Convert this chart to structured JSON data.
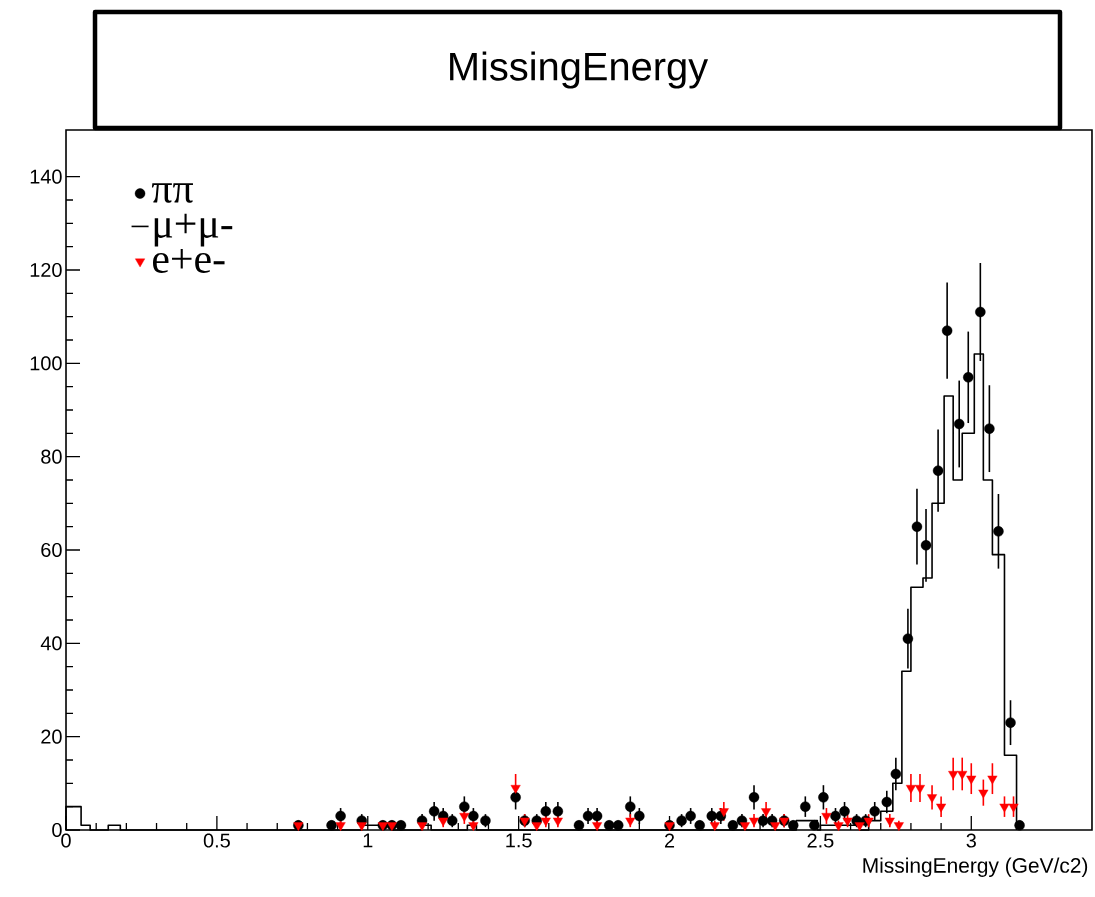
{
  "chart_data": {
    "type": "scatter",
    "title": "MissingEnergy",
    "xlabel": "MissingEnergy (GeV/c2)",
    "xlim": [
      0,
      3.4
    ],
    "ylim": [
      0,
      150
    ],
    "xticks": [
      0,
      0.5,
      1,
      1.5,
      2,
      2.5,
      3
    ],
    "yticks": [
      0,
      20,
      40,
      60,
      80,
      100,
      120,
      140
    ],
    "legend": "top left",
    "grid": false,
    "series": [
      {
        "name": "ππ",
        "marker": "circle",
        "color": "#000000",
        "x": [
          0.77,
          0.88,
          0.91,
          0.98,
          1.05,
          1.08,
          1.11,
          1.18,
          1.22,
          1.25,
          1.28,
          1.32,
          1.35,
          1.39,
          1.49,
          1.52,
          1.56,
          1.59,
          1.63,
          1.7,
          1.73,
          1.76,
          1.8,
          1.83,
          1.87,
          1.9,
          2.0,
          2.04,
          2.07,
          2.1,
          2.14,
          2.17,
          2.21,
          2.24,
          2.28,
          2.31,
          2.34,
          2.38,
          2.41,
          2.45,
          2.48,
          2.51,
          2.55,
          2.58,
          2.62,
          2.65,
          2.68,
          2.72,
          2.75,
          2.79,
          2.82,
          2.85,
          2.89,
          2.92,
          2.96,
          2.99,
          3.03,
          3.06,
          3.09,
          3.13,
          3.16
        ],
        "values": [
          1,
          1,
          3,
          2,
          1,
          1,
          1,
          2,
          4,
          3,
          2,
          5,
          3,
          2,
          7,
          2,
          2,
          4,
          4,
          1,
          3,
          3,
          1,
          1,
          5,
          3,
          1,
          2,
          3,
          1,
          3,
          3,
          1,
          2,
          7,
          2,
          2,
          2,
          1,
          5,
          1,
          7,
          3,
          4,
          2,
          2,
          4,
          6,
          12,
          41,
          65,
          61,
          77,
          107,
          87,
          97,
          111,
          86,
          64,
          23,
          1
        ],
        "errors": [
          1,
          1,
          1.7,
          1.4,
          1,
          1,
          1,
          1.4,
          2,
          1.7,
          1.4,
          2.2,
          1.7,
          1.4,
          2.6,
          1.4,
          1.4,
          2,
          2,
          1,
          1.7,
          1.7,
          1,
          1,
          2.2,
          1.7,
          1,
          1.4,
          1.7,
          1,
          1.7,
          1.7,
          1,
          1.4,
          2.6,
          1.4,
          1.4,
          1.4,
          1,
          2.2,
          1,
          2.6,
          1.7,
          2,
          1.4,
          1.4,
          2,
          2.4,
          3.5,
          6.4,
          8.1,
          7.8,
          8.8,
          10.3,
          9.3,
          9.8,
          10.5,
          9.3,
          8,
          4.8,
          1
        ]
      },
      {
        "name": "μ+μ-",
        "type": "histogram",
        "color": "#000000",
        "bins": [
          0,
          0.05,
          0.08,
          0.14,
          0.18,
          0.98,
          1.08,
          1.18,
          1.21,
          1.33,
          1.36,
          2.42,
          2.49,
          2.5,
          2.63,
          2.66,
          2.7,
          2.74,
          2.77,
          2.8,
          2.84,
          2.87,
          2.91,
          2.94,
          2.97,
          3.01,
          3.04,
          3.07,
          3.11,
          3.15
        ],
        "values": [
          5,
          1,
          0,
          1,
          0,
          1,
          0,
          1,
          0,
          1,
          0,
          2,
          0,
          1,
          0,
          2,
          4,
          10,
          34,
          52,
          54,
          70,
          93,
          75,
          85,
          102,
          75,
          59,
          16
        ]
      },
      {
        "name": "e+e-",
        "marker": "triangle",
        "color": "#ff0000",
        "x": [
          0.77,
          0.91,
          0.98,
          1.05,
          1.08,
          1.18,
          1.25,
          1.32,
          1.35,
          1.49,
          1.52,
          1.56,
          1.59,
          1.63,
          1.76,
          1.87,
          2.0,
          2.15,
          2.18,
          2.25,
          2.28,
          2.32,
          2.35,
          2.38,
          2.52,
          2.56,
          2.59,
          2.63,
          2.66,
          2.73,
          2.76,
          2.8,
          2.83,
          2.87,
          2.9,
          2.94,
          2.97,
          3.0,
          3.04,
          3.07,
          3.11,
          3.14
        ],
        "values": [
          1,
          1,
          1,
          1,
          1,
          1,
          2,
          3,
          1,
          9,
          2,
          1,
          2,
          2,
          1,
          2,
          1,
          1,
          4,
          1,
          2,
          4,
          1,
          2,
          3,
          1,
          2,
          1,
          2,
          2,
          1,
          9,
          9,
          7,
          5,
          12,
          12,
          11,
          8,
          11,
          5,
          5
        ],
        "errors": [
          1,
          1,
          1,
          1,
          1,
          1,
          1.4,
          1.7,
          1,
          3,
          1.4,
          1,
          1.4,
          1.4,
          1,
          1.4,
          1,
          1,
          2,
          1,
          1.4,
          2,
          1,
          1.4,
          1.7,
          1,
          1.4,
          1,
          1.4,
          1.4,
          1,
          3,
          3,
          2.6,
          2.2,
          3.5,
          3.5,
          3.3,
          2.8,
          3.3,
          2.2,
          2.2
        ]
      }
    ]
  }
}
